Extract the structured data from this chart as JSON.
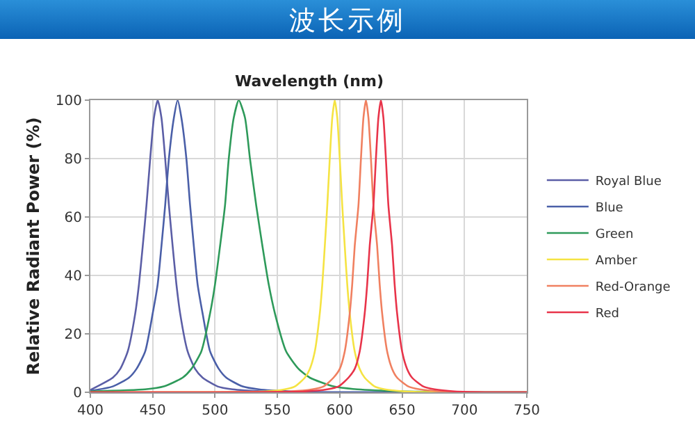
{
  "chart_data": {
    "type": "line",
    "title": "波长示例",
    "xlabel": "Wavelength (nm)",
    "ylabel": "Relative Radiant Power (%)",
    "xlim": [
      400,
      750
    ],
    "xticks": [
      400,
      450,
      500,
      550,
      600,
      650,
      700,
      750
    ],
    "ylim": [
      0,
      100
    ],
    "yticks": [
      0,
      20,
      40,
      60,
      80,
      100
    ],
    "grid": true,
    "legend": "right",
    "marker": "none",
    "line_style": "solid",
    "series": [
      {
        "name": "Royal Blue",
        "color": "#5b5ea6",
        "x": [
          400,
          418,
          424,
          430,
          436,
          439,
          442,
          445,
          448,
          451,
          454,
          457,
          460,
          463,
          466,
          469,
          472,
          478,
          484,
          490,
          502,
          514,
          538,
          570,
          750
        ],
        "values": [
          0.8,
          5,
          8,
          14,
          27,
          37,
          50,
          64,
          80,
          94,
          100,
          94,
          80,
          64,
          50,
          37,
          27,
          14,
          8,
          5,
          2,
          1,
          0.3,
          0,
          0
        ]
      },
      {
        "name": "Blue",
        "color": "#4a5fa8",
        "x": [
          400,
          418,
          431,
          437,
          444,
          450,
          454,
          457,
          460,
          463,
          467,
          470,
          473,
          477,
          480,
          483,
          486,
          490,
          496,
          503,
          509,
          522,
          535,
          561,
          600,
          750
        ],
        "values": [
          0.5,
          2,
          5,
          8,
          14,
          27,
          37,
          50,
          64,
          80,
          94,
          100,
          94,
          80,
          64,
          50,
          37,
          27,
          14,
          8,
          5,
          2,
          1,
          0.3,
          0,
          0
        ]
      },
      {
        "name": "Green",
        "color": "#2e9a5a",
        "x": [
          400,
          444,
          459,
          474,
          481,
          489,
          496,
          500,
          504,
          508,
          511,
          515,
          519,
          524,
          528,
          533,
          538,
          543,
          548,
          557,
          567,
          576,
          595,
          614,
          652,
          700,
          750
        ],
        "values": [
          0.3,
          1,
          2,
          5,
          8,
          14,
          27,
          37,
          50,
          64,
          80,
          94,
          100,
          94,
          80,
          64,
          50,
          37,
          27,
          14,
          8,
          5,
          2,
          1,
          0.3,
          0,
          0
        ]
      },
      {
        "name": "Amber",
        "color": "#f5e342",
        "x": [
          400,
          540,
          556,
          564,
          572,
          576,
          580,
          584,
          586,
          588,
          590,
          592,
          594,
          596,
          598,
          600,
          602,
          604,
          606,
          608,
          612,
          616,
          620,
          628,
          636,
          652,
          680,
          750
        ],
        "values": [
          0,
          0.3,
          1,
          2,
          5,
          8,
          14,
          27,
          37,
          50,
          64,
          80,
          94,
          100,
          94,
          80,
          64,
          50,
          37,
          27,
          14,
          8,
          5,
          2,
          1,
          0.3,
          0,
          0
        ]
      },
      {
        "name": "Red-Orange",
        "color": "#f08060",
        "x": [
          400,
          560,
          578,
          587,
          595,
          600,
          604,
          608,
          610,
          612,
          615,
          617,
          619,
          621,
          623,
          625,
          627,
          630,
          632,
          634,
          638,
          642,
          646,
          655,
          664,
          680,
          710,
          750
        ],
        "values": [
          0,
          0.3,
          1,
          2,
          5,
          8,
          14,
          27,
          37,
          50,
          64,
          80,
          94,
          100,
          94,
          80,
          64,
          50,
          37,
          27,
          14,
          8,
          5,
          2,
          1,
          0.3,
          0,
          0
        ]
      },
      {
        "name": "Red",
        "color": "#e8344a",
        "x": [
          400,
          572,
          590,
          599,
          607,
          612,
          616,
          620,
          622,
          624,
          627,
          629,
          631,
          633,
          635,
          637,
          639,
          642,
          644,
          646,
          650,
          654,
          658,
          667,
          676,
          692,
          722,
          750
        ],
        "values": [
          0,
          0.3,
          1,
          2,
          5,
          8,
          14,
          27,
          37,
          50,
          64,
          80,
          94,
          100,
          94,
          80,
          64,
          50,
          37,
          27,
          14,
          8,
          5,
          2,
          1,
          0.3,
          0,
          0
        ]
      }
    ]
  }
}
